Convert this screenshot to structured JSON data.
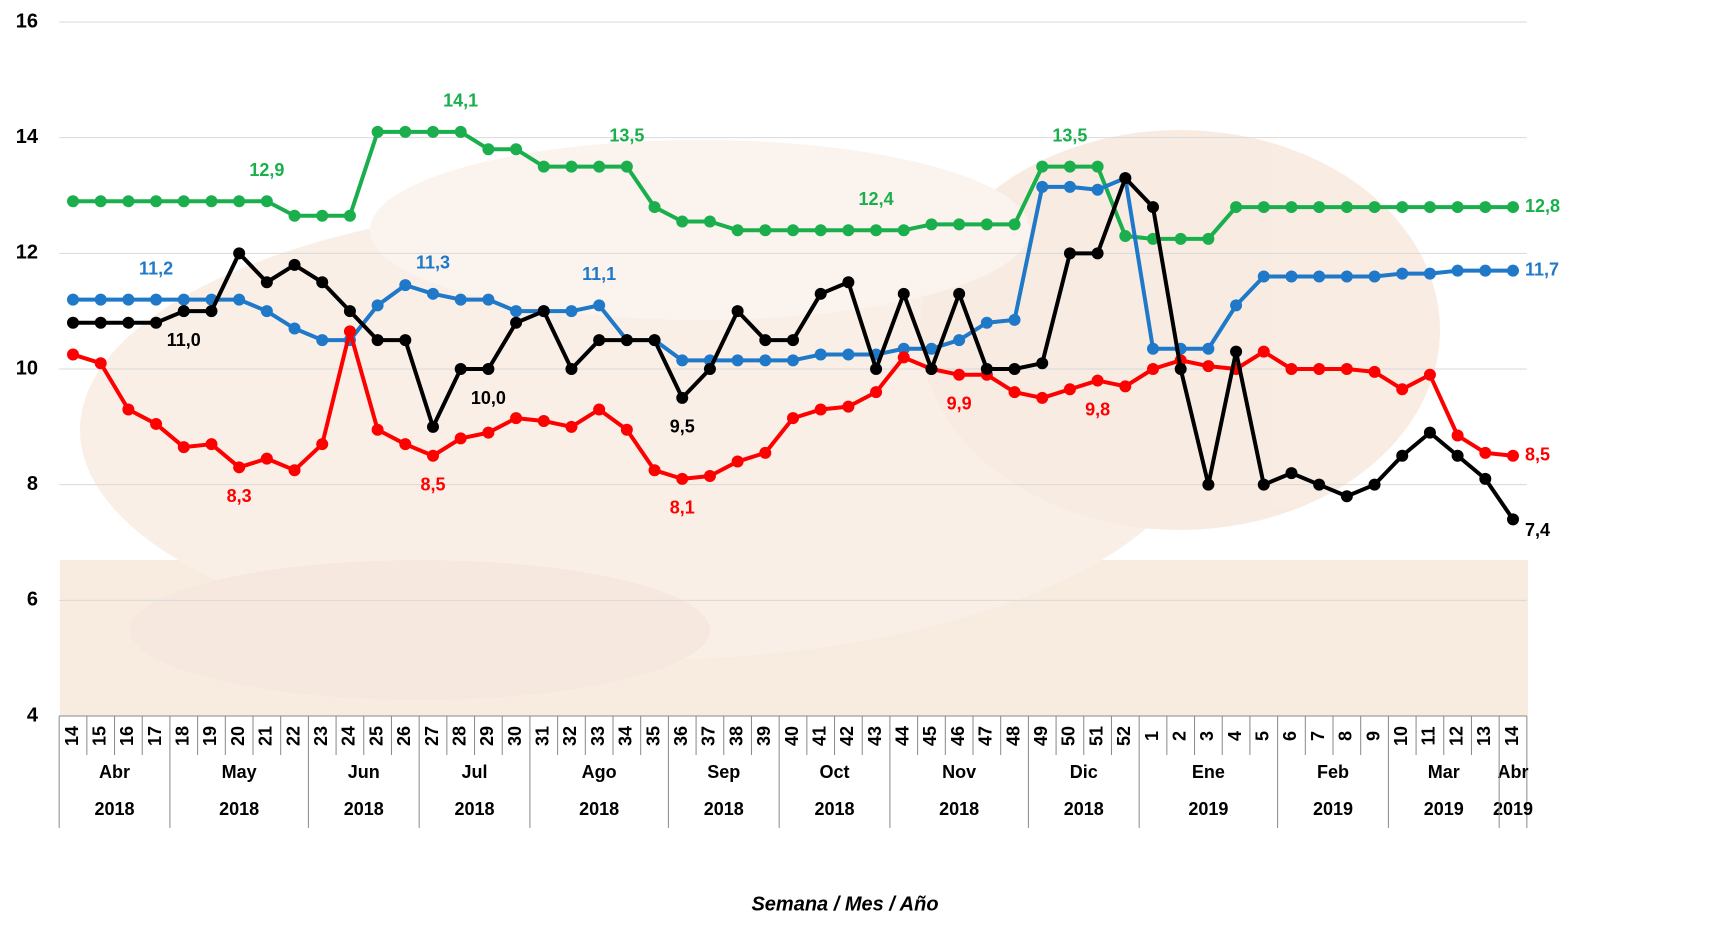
{
  "chart_data": {
    "type": "line",
    "x_axis_label": "Semana / Mes / Año",
    "categories": [
      "14",
      "15",
      "16",
      "17",
      "18",
      "19",
      "20",
      "21",
      "22",
      "23",
      "24",
      "25",
      "26",
      "27",
      "28",
      "29",
      "30",
      "31",
      "32",
      "33",
      "34",
      "35",
      "36",
      "37",
      "38",
      "39",
      "40",
      "41",
      "42",
      "43",
      "44",
      "45",
      "46",
      "47",
      "48",
      "49",
      "50",
      "51",
      "52",
      "1",
      "2",
      "3",
      "4",
      "5",
      "6",
      "7",
      "8",
      "9",
      "10",
      "11",
      "12",
      "13",
      "14"
    ],
    "months": [
      "Abr",
      "Abr",
      "Abr",
      "Abr",
      "May",
      "May",
      "May",
      "May",
      "May",
      "Jun",
      "Jun",
      "Jun",
      "Jun",
      "Jul",
      "Jul",
      "Jul",
      "Jul",
      "Ago",
      "Ago",
      "Ago",
      "Ago",
      "Ago",
      "Sep",
      "Sep",
      "Sep",
      "Sep",
      "Oct",
      "Oct",
      "Oct",
      "Oct",
      "Nov",
      "Nov",
      "Nov",
      "Nov",
      "Nov",
      "Dic",
      "Dic",
      "Dic",
      "Dic",
      "Ene",
      "Ene",
      "Ene",
      "Ene",
      "Ene",
      "Feb",
      "Feb",
      "Feb",
      "Feb",
      "Mar",
      "Mar",
      "Mar",
      "Mar",
      "Abr"
    ],
    "years": [
      "2018",
      "2018",
      "2018",
      "2018",
      "2018",
      "2018",
      "2018",
      "2018",
      "2018",
      "2018",
      "2018",
      "2018",
      "2018",
      "2018",
      "2018",
      "2018",
      "2018",
      "2018",
      "2018",
      "2018",
      "2018",
      "2018",
      "2018",
      "2018",
      "2018",
      "2018",
      "2018",
      "2018",
      "2018",
      "2018",
      "2018",
      "2018",
      "2018",
      "2018",
      "2018",
      "2018",
      "2018",
      "2018",
      "2018",
      "2019",
      "2019",
      "2019",
      "2019",
      "2019",
      "2019",
      "2019",
      "2019",
      "2019",
      "2019",
      "2019",
      "2019",
      "2019",
      "2019"
    ],
    "ylim": [
      4,
      16
    ],
    "yticks": [
      4,
      6,
      8,
      10,
      12,
      14,
      16
    ],
    "grid": true,
    "series": [
      {
        "color": "#1aaf4c",
        "values": [
          12.9,
          12.9,
          12.9,
          12.9,
          12.9,
          12.9,
          12.9,
          12.9,
          12.65,
          12.65,
          12.65,
          14.1,
          14.1,
          14.1,
          14.1,
          13.8,
          13.8,
          13.5,
          13.5,
          13.5,
          13.5,
          12.8,
          12.55,
          12.55,
          12.4,
          12.4,
          12.4,
          12.4,
          12.4,
          12.4,
          12.4,
          12.5,
          12.5,
          12.5,
          12.5,
          13.5,
          13.5,
          13.5,
          12.3,
          12.25,
          12.25,
          12.25,
          12.8,
          12.8,
          12.8,
          12.8,
          12.8,
          12.8,
          12.8,
          12.8,
          12.8,
          12.8,
          12.8
        ],
        "value_labels": [
          null,
          null,
          null,
          null,
          null,
          null,
          null,
          "12,9",
          null,
          null,
          null,
          null,
          null,
          null,
          "14,1",
          null,
          null,
          null,
          null,
          null,
          "13,5",
          null,
          null,
          null,
          null,
          null,
          null,
          null,
          null,
          "12,4",
          null,
          null,
          null,
          null,
          null,
          null,
          "13,5",
          null,
          null,
          null,
          null,
          null,
          null,
          null,
          null,
          null,
          null,
          null,
          null,
          null,
          null,
          null,
          "12,8"
        ]
      },
      {
        "color": "#1f78c8",
        "values": [
          11.2,
          11.2,
          11.2,
          11.2,
          11.2,
          11.2,
          11.2,
          11.0,
          10.7,
          10.5,
          10.5,
          11.1,
          11.45,
          11.3,
          11.2,
          11.2,
          11.0,
          11.0,
          11.0,
          11.1,
          10.5,
          10.5,
          10.15,
          10.15,
          10.15,
          10.15,
          10.15,
          10.25,
          10.25,
          10.25,
          10.35,
          10.35,
          10.5,
          10.8,
          10.85,
          13.15,
          13.15,
          13.1,
          13.3,
          10.35,
          10.35,
          10.35,
          11.1,
          11.6,
          11.6,
          11.6,
          11.6,
          11.6,
          11.65,
          11.65,
          11.7,
          11.7,
          11.7
        ],
        "value_labels": [
          null,
          null,
          null,
          "11,2",
          null,
          null,
          null,
          null,
          null,
          null,
          null,
          null,
          null,
          "11,3",
          null,
          null,
          null,
          null,
          null,
          "11,1",
          null,
          null,
          null,
          null,
          null,
          null,
          null,
          null,
          null,
          null,
          null,
          null,
          null,
          null,
          null,
          null,
          null,
          null,
          null,
          null,
          null,
          null,
          null,
          null,
          null,
          null,
          null,
          null,
          null,
          null,
          null,
          null,
          "11,7"
        ]
      },
      {
        "color": "#ff0000",
        "values": [
          10.25,
          10.1,
          9.3,
          9.05,
          8.65,
          8.7,
          8.3,
          8.45,
          8.25,
          8.7,
          10.65,
          8.95,
          8.7,
          8.5,
          8.8,
          8.9,
          9.15,
          9.1,
          9.0,
          9.3,
          8.95,
          8.25,
          8.1,
          8.15,
          8.4,
          8.55,
          9.15,
          9.3,
          9.35,
          9.6,
          10.2,
          10.0,
          9.9,
          9.9,
          9.6,
          9.5,
          9.65,
          9.8,
          9.7,
          10.0,
          10.15,
          10.05,
          10.0,
          10.3,
          10.0,
          10.0,
          10.0,
          9.95,
          9.65,
          9.9,
          8.85,
          8.55,
          8.5
        ],
        "value_labels": [
          null,
          null,
          null,
          null,
          null,
          null,
          "8,3",
          null,
          null,
          null,
          null,
          null,
          null,
          "8,5",
          null,
          null,
          null,
          null,
          null,
          null,
          null,
          null,
          "8,1",
          null,
          null,
          null,
          null,
          null,
          null,
          null,
          null,
          null,
          "9,9",
          null,
          null,
          null,
          null,
          "9,8",
          null,
          null,
          null,
          null,
          null,
          null,
          null,
          null,
          null,
          null,
          null,
          null,
          null,
          null,
          "8,5"
        ]
      },
      {
        "color": "#000000",
        "values": [
          10.8,
          10.8,
          10.8,
          10.8,
          11.0,
          11.0,
          12.0,
          11.5,
          11.8,
          11.5,
          11.0,
          10.5,
          10.5,
          9.0,
          10.0,
          10.0,
          10.8,
          11.0,
          10.0,
          10.5,
          10.5,
          10.5,
          9.5,
          10.0,
          11.0,
          10.5,
          10.5,
          11.3,
          11.5,
          10.0,
          11.3,
          10.0,
          11.3,
          10.0,
          10.0,
          10.1,
          12.0,
          12.0,
          13.3,
          12.8,
          10.0,
          8.0,
          10.3,
          8.0,
          8.2,
          8.0,
          7.8,
          8.0,
          8.5,
          8.9,
          8.5,
          8.1,
          7.4
        ],
        "value_labels": [
          null,
          null,
          null,
          null,
          "11,0",
          null,
          null,
          null,
          null,
          null,
          null,
          null,
          null,
          null,
          null,
          "10,0",
          null,
          null,
          null,
          null,
          null,
          null,
          "9,5",
          null,
          null,
          null,
          null,
          null,
          null,
          null,
          null,
          null,
          null,
          null,
          null,
          null,
          null,
          null,
          null,
          null,
          null,
          null,
          null,
          null,
          null,
          null,
          null,
          null,
          null,
          null,
          null,
          null,
          "7,4"
        ]
      }
    ]
  }
}
